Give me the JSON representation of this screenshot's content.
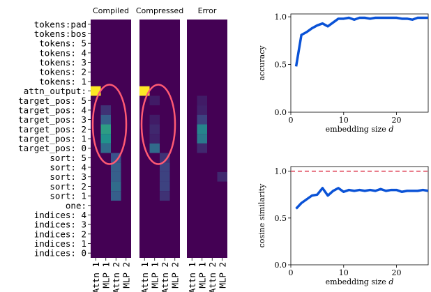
{
  "chart_data": [
    {
      "type": "heatmap",
      "panels": [
        {
          "title": "Compiled",
          "cols": [
            "Attn 1",
            "MLP 1",
            "Attn 2",
            "MLP 2"
          ]
        },
        {
          "title": "Compressed",
          "cols": [
            "Attn 1",
            "MLP 1",
            "Attn 2",
            "MLP 2"
          ]
        },
        {
          "title": "Error",
          "cols": [
            "Attn 1",
            "MLP 1",
            "Attn 2",
            "MLP 2"
          ]
        }
      ],
      "row_labels": [
        "tokens:pad",
        "tokens:bos",
        "tokens: 5",
        "tokens: 4",
        "tokens: 3",
        "tokens: 2",
        "tokens: 1",
        "attn_output:",
        "target_pos: 5",
        "target_pos: 4",
        "target_pos: 3",
        "target_pos: 2",
        "target_pos: 1",
        "target_pos: 0",
        "sort: 5",
        "sort: 4",
        "sort: 3",
        "sort: 2",
        "sort: 1",
        "one:",
        "indices: 4",
        "indices: 3",
        "indices: 2",
        "indices: 1",
        "indices: 0"
      ],
      "colormap": [
        "#440154",
        "#3b528b",
        "#21918c",
        "#5ec962",
        "#fde725"
      ],
      "cells": [
        {
          "panel": 0,
          "row": 7,
          "col": 0,
          "value": 1.0
        },
        {
          "panel": 0,
          "row": 9,
          "col": 1,
          "value": 0.15
        },
        {
          "panel": 0,
          "row": 10,
          "col": 1,
          "value": 0.3
        },
        {
          "panel": 0,
          "row": 11,
          "col": 1,
          "value": 0.55
        },
        {
          "panel": 0,
          "row": 12,
          "col": 1,
          "value": 0.5
        },
        {
          "panel": 0,
          "row": 13,
          "col": 1,
          "value": 0.35
        },
        {
          "panel": 0,
          "row": 14,
          "col": 2,
          "value": 0.25
        },
        {
          "panel": 0,
          "row": 15,
          "col": 2,
          "value": 0.3
        },
        {
          "panel": 0,
          "row": 16,
          "col": 2,
          "value": 0.3
        },
        {
          "panel": 0,
          "row": 17,
          "col": 2,
          "value": 0.35
        },
        {
          "panel": 0,
          "row": 18,
          "col": 2,
          "value": 0.3
        },
        {
          "panel": 1,
          "row": 7,
          "col": 0,
          "value": 1.0
        },
        {
          "panel": 1,
          "row": 8,
          "col": 1,
          "value": 0.08
        },
        {
          "panel": 1,
          "row": 10,
          "col": 1,
          "value": 0.08
        },
        {
          "panel": 1,
          "row": 11,
          "col": 1,
          "value": 0.12
        },
        {
          "panel": 1,
          "row": 12,
          "col": 1,
          "value": 0.1
        },
        {
          "panel": 1,
          "row": 13,
          "col": 1,
          "value": 0.35
        },
        {
          "panel": 1,
          "row": 14,
          "col": 2,
          "value": 0.15
        },
        {
          "panel": 1,
          "row": 15,
          "col": 2,
          "value": 0.2
        },
        {
          "panel": 1,
          "row": 16,
          "col": 2,
          "value": 0.2
        },
        {
          "panel": 1,
          "row": 17,
          "col": 2,
          "value": 0.2
        },
        {
          "panel": 1,
          "row": 18,
          "col": 2,
          "value": 0.15
        },
        {
          "panel": 2,
          "row": 8,
          "col": 1,
          "value": 0.08
        },
        {
          "panel": 2,
          "row": 9,
          "col": 1,
          "value": 0.1
        },
        {
          "panel": 2,
          "row": 10,
          "col": 1,
          "value": 0.2
        },
        {
          "panel": 2,
          "row": 11,
          "col": 1,
          "value": 0.45
        },
        {
          "panel": 2,
          "row": 12,
          "col": 1,
          "value": 0.4
        },
        {
          "panel": 2,
          "row": 13,
          "col": 1,
          "value": 0.12
        },
        {
          "panel": 2,
          "row": 16,
          "col": 3,
          "value": 0.12
        }
      ],
      "highlights": [
        {
          "panel": 0,
          "shape": "ellipse",
          "color": "#ff5a73"
        },
        {
          "panel": 1,
          "shape": "ellipse",
          "color": "#ff5a73"
        }
      ]
    },
    {
      "type": "line",
      "xlabel": "embedding size",
      "xlabel_var": "d",
      "ylabel": "accuracy",
      "xlim": [
        0,
        26
      ],
      "ylim": [
        0.0,
        1.03
      ],
      "xticks": [
        0,
        10,
        20
      ],
      "yticks": [
        0.0,
        0.5,
        1.0
      ],
      "ytick_labels": [
        "0.0",
        "0.5",
        "1.0"
      ],
      "color": "#0a52d6",
      "x": [
        1,
        2,
        3,
        4,
        5,
        6,
        7,
        8,
        9,
        10,
        11,
        12,
        13,
        14,
        15,
        16,
        17,
        18,
        19,
        20,
        21,
        22,
        23,
        24,
        25,
        26
      ],
      "y": [
        0.48,
        0.81,
        0.84,
        0.88,
        0.91,
        0.93,
        0.9,
        0.94,
        0.98,
        0.98,
        0.99,
        0.97,
        0.99,
        0.99,
        0.98,
        0.99,
        0.99,
        0.99,
        0.99,
        0.99,
        0.98,
        0.98,
        0.97,
        0.99,
        0.99,
        0.99
      ]
    },
    {
      "type": "line",
      "xlabel": "embedding size",
      "xlabel_var": "d",
      "ylabel": "cosine similarity",
      "xlim": [
        0,
        26
      ],
      "ylim": [
        0.0,
        1.05
      ],
      "xticks": [
        0,
        10,
        20
      ],
      "yticks": [
        0.0,
        0.5,
        1.0
      ],
      "ytick_labels": [
        "0.0",
        "0.5",
        "1.0"
      ],
      "color": "#0a52d6",
      "reference_line": {
        "y": 1.0,
        "style": "dashed",
        "color": "#e0475b"
      },
      "x": [
        1,
        2,
        3,
        4,
        5,
        6,
        7,
        8,
        9,
        10,
        11,
        12,
        13,
        14,
        15,
        16,
        17,
        18,
        19,
        20,
        21,
        22,
        23,
        24,
        25,
        26
      ],
      "y": [
        0.6,
        0.66,
        0.7,
        0.74,
        0.75,
        0.82,
        0.74,
        0.79,
        0.82,
        0.78,
        0.8,
        0.79,
        0.8,
        0.79,
        0.8,
        0.79,
        0.81,
        0.79,
        0.8,
        0.8,
        0.78,
        0.79,
        0.79,
        0.79,
        0.8,
        0.79
      ]
    }
  ]
}
